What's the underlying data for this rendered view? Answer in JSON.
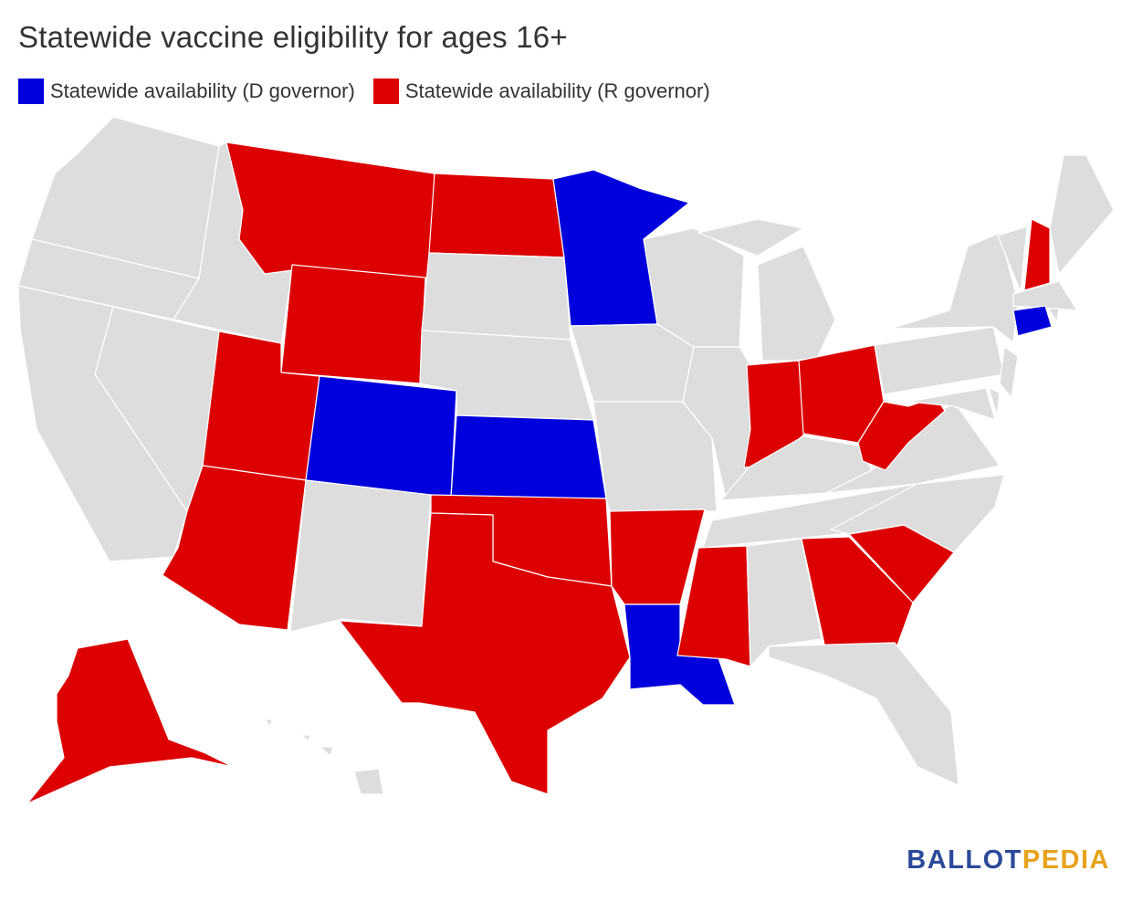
{
  "title": "Statewide vaccine eligibility for ages 16+",
  "legend": [
    {
      "label": "Statewide availability (D governor)",
      "color": "#0000dd",
      "party": "D"
    },
    {
      "label": "Statewide availability (R governor)",
      "color": "#dd0000",
      "party": "R"
    }
  ],
  "colors": {
    "no_statewide_availability": "#dddddd",
    "state_border": "#ffffff",
    "D": "#0000dd",
    "R": "#dd0000"
  },
  "states_statewide_availability": {
    "D": [
      "Minnesota",
      "Colorado",
      "Kansas",
      "Louisiana",
      "Connecticut"
    ],
    "R": [
      "Alaska",
      "Montana",
      "North Dakota",
      "Wyoming",
      "Utah",
      "Arizona",
      "Texas",
      "Oklahoma",
      "Arkansas",
      "Mississippi",
      "Georgia",
      "South Carolina",
      "Indiana",
      "Ohio",
      "West Virginia",
      "New Hampshire"
    ]
  },
  "brand": {
    "part1": "BALLOT",
    "part2": "PEDIA"
  }
}
